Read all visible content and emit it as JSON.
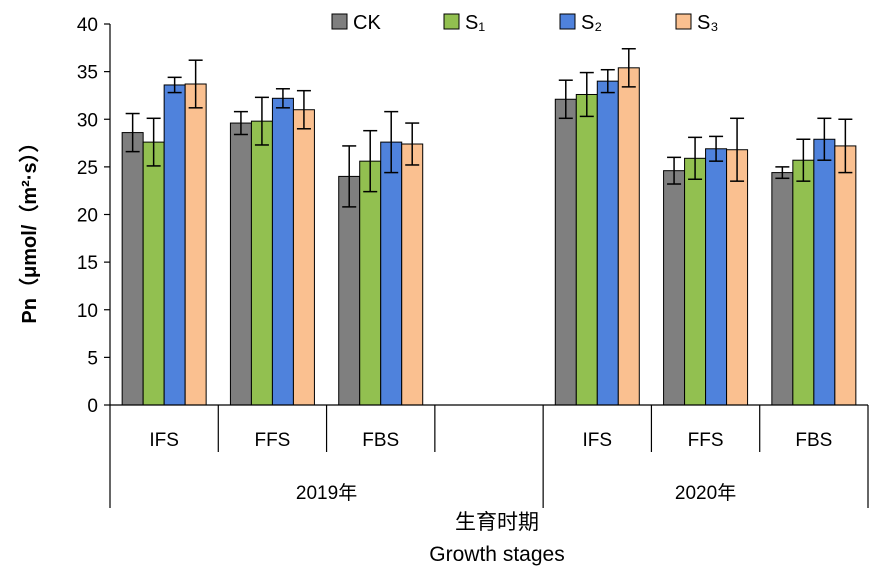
{
  "chart_data": {
    "type": "bar",
    "ylabel": "Pn（μmol/（m²·s））",
    "xlabel_cn": "生育时期",
    "xlabel_en": "Growth stages",
    "ylim": [
      0,
      40
    ],
    "yticks": [
      0,
      5,
      10,
      15,
      20,
      25,
      30,
      35,
      40
    ],
    "grid": false,
    "legend_position": "top",
    "categories": [
      "IFS",
      "FFS",
      "FBS",
      "",
      "IFS",
      "FFS",
      "FBS"
    ],
    "groups": [
      {
        "label": "2019年",
        "span": 4
      },
      {
        "label": "2020年",
        "span": 3
      }
    ],
    "series": [
      {
        "name": "CK",
        "color": "#7f7f7f",
        "values": [
          28.6,
          29.6,
          24.0,
          null,
          32.1,
          24.6,
          24.4
        ],
        "errors": [
          2.0,
          1.2,
          3.2,
          null,
          2.0,
          1.4,
          0.6
        ]
      },
      {
        "name": "S₁",
        "color": "#92c050",
        "values": [
          27.6,
          29.8,
          25.6,
          null,
          32.6,
          25.9,
          25.7
        ],
        "errors": [
          2.5,
          2.5,
          3.2,
          null,
          2.3,
          2.2,
          2.2
        ]
      },
      {
        "name": "S₂",
        "color": "#4f82dc",
        "values": [
          33.6,
          32.2,
          27.6,
          null,
          34.0,
          26.9,
          27.9
        ],
        "errors": [
          0.8,
          1.0,
          3.2,
          null,
          1.2,
          1.3,
          2.2
        ]
      },
      {
        "name": "S₃",
        "color": "#fac090",
        "values": [
          33.7,
          31.0,
          27.4,
          null,
          35.4,
          26.8,
          27.2
        ],
        "errors": [
          2.5,
          2.0,
          2.2,
          null,
          2.0,
          3.3,
          2.8
        ]
      }
    ]
  }
}
